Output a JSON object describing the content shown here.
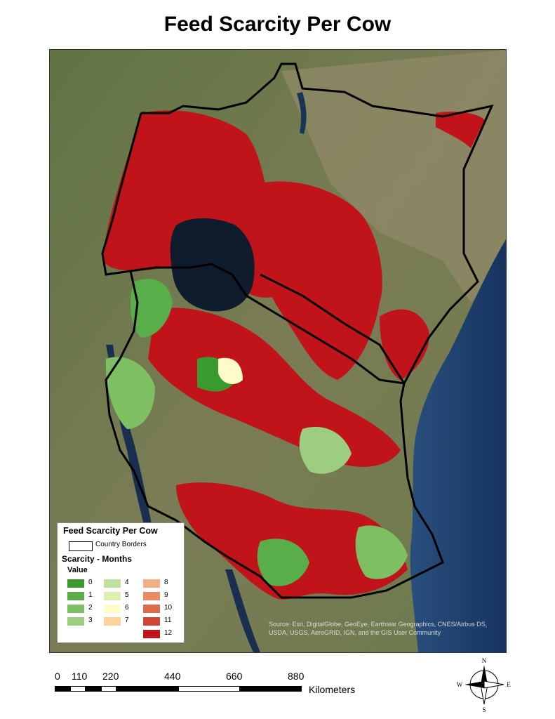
{
  "title": "Feed Scarcity Per Cow",
  "legend": {
    "title": "Feed Scarcity Per Cow",
    "border_label": "Country Borders",
    "layer_label": "Scarcity - Months",
    "value_label": "Value",
    "classes": [
      {
        "label": "0",
        "color": "#3a9a2e"
      },
      {
        "label": "1",
        "color": "#5aae4a"
      },
      {
        "label": "2",
        "color": "#7dbf62"
      },
      {
        "label": "3",
        "color": "#9ccd80"
      },
      {
        "label": "4",
        "color": "#c1e19b"
      },
      {
        "label": "5",
        "color": "#dcefb0"
      },
      {
        "label": "6",
        "color": "#fdfbc8"
      },
      {
        "label": "7",
        "color": "#fbd49a"
      },
      {
        "label": "8",
        "color": "#f5ae84"
      },
      {
        "label": "9",
        "color": "#ec8a66"
      },
      {
        "label": "10",
        "color": "#e06a4c"
      },
      {
        "label": "11",
        "color": "#cf4434"
      },
      {
        "label": "12",
        "color": "#c0141a"
      }
    ]
  },
  "attribution": "Source: Esri, DigitalGlobe, GeoEye, Earthstar Geographics, CNES/Airbus DS, USDA, USGS, AeroGRID, IGN, and the GIS User Community",
  "scale": {
    "ticks": [
      "0",
      "110",
      "220",
      "440",
      "660",
      "880"
    ],
    "unit": "Kilometers"
  },
  "north_arrow": {
    "n": "N",
    "s": "S",
    "e": "E",
    "w": "W"
  },
  "colors": {
    "land": "#6b7a4a",
    "land_dry": "#8f8a6a",
    "ocean": "#1d3d6e",
    "lake": "#0f1c2e",
    "scarcity_high": "#c0141a",
    "scarcity_low": "#3a9a2e",
    "border": "#000000"
  }
}
